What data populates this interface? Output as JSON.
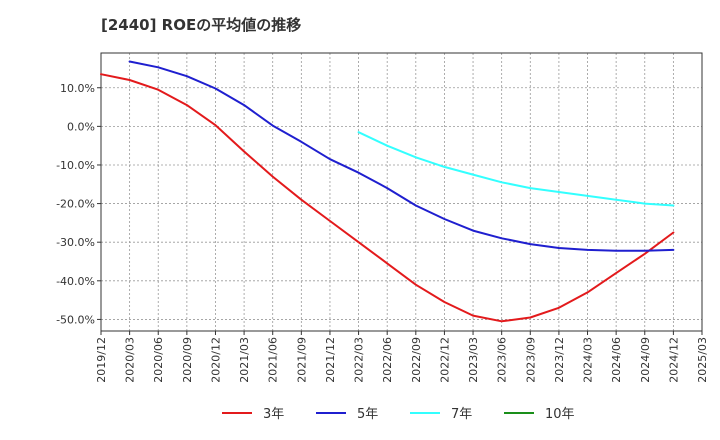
{
  "chart_data": {
    "type": "line",
    "title": "[2440]  ROEの平均値の推移",
    "xlabel": "",
    "ylabel": "",
    "x": [
      "2019/12",
      "2020/03",
      "2020/06",
      "2020/09",
      "2020/12",
      "2021/03",
      "2021/06",
      "2021/09",
      "2021/12",
      "2022/03",
      "2022/06",
      "2022/09",
      "2022/12",
      "2023/03",
      "2023/06",
      "2023/09",
      "2023/12",
      "2024/03",
      "2024/06",
      "2024/09",
      "2024/12",
      "2025/03"
    ],
    "ylim": [
      -53,
      19
    ],
    "yticks": [
      10,
      0,
      -10,
      -20,
      -30,
      -40,
      -50
    ],
    "ytick_labels": [
      "10.0%",
      "0.0%",
      "-10.0%",
      "-20.0%",
      "-30.0%",
      "-40.0%",
      "-50.0%"
    ],
    "grid": true,
    "legend_position": "bottom",
    "series": [
      {
        "name": "3年",
        "color": "#e31a1c",
        "values": [
          13.5,
          12.0,
          9.5,
          5.5,
          0.3,
          -6.5,
          -13.0,
          -19.0,
          -24.5,
          -30.0,
          -35.5,
          -41.0,
          -45.5,
          -49.0,
          -50.5,
          -49.5,
          -47.0,
          -43.0,
          -38.0,
          -33.0,
          -27.5,
          null
        ]
      },
      {
        "name": "5年",
        "color": "#1f1fcf",
        "values": [
          null,
          16.8,
          15.3,
          13.0,
          9.8,
          5.5,
          0.2,
          -4.0,
          -8.5,
          -12.0,
          -16.0,
          -20.5,
          -24.0,
          -27.0,
          -29.0,
          -30.5,
          -31.5,
          -32.0,
          -32.2,
          -32.2,
          -32.0,
          null
        ]
      },
      {
        "name": "7年",
        "color": "#33ffff",
        "values": [
          null,
          null,
          null,
          null,
          null,
          null,
          null,
          null,
          null,
          -1.5,
          -5.0,
          -8.0,
          -10.5,
          -12.5,
          -14.5,
          -16.0,
          -17.0,
          -18.0,
          -19.0,
          -20.0,
          -20.5,
          null
        ]
      },
      {
        "name": "10年",
        "color": "#1a8f1a",
        "values": [
          null,
          null,
          null,
          null,
          null,
          null,
          null,
          null,
          null,
          null,
          null,
          null,
          null,
          null,
          null,
          null,
          null,
          null,
          null,
          null,
          null,
          null
        ]
      }
    ]
  }
}
